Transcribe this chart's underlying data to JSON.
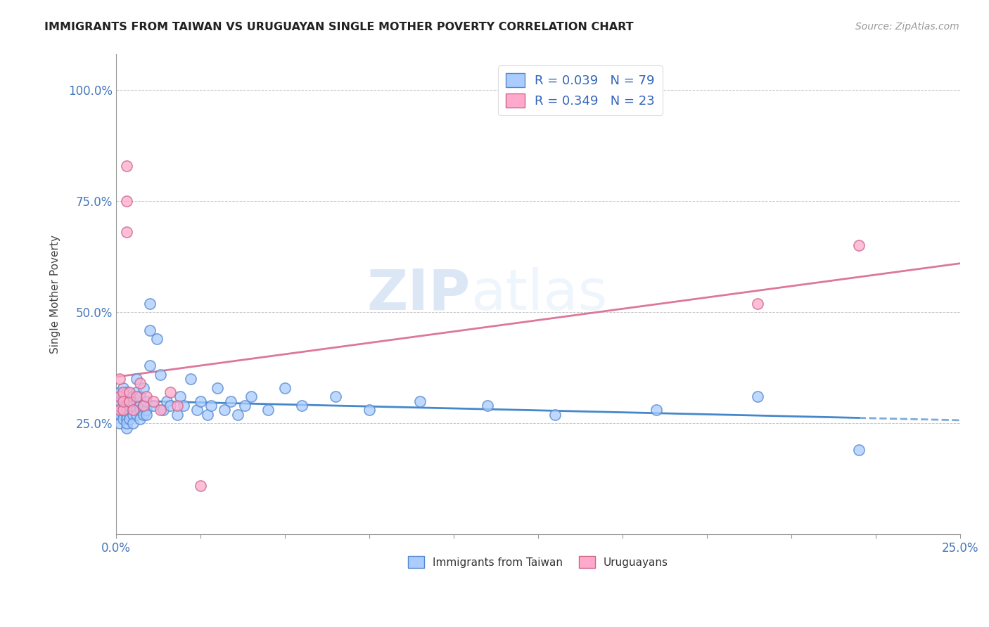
{
  "title": "IMMIGRANTS FROM TAIWAN VS URUGUAYAN SINGLE MOTHER POVERTY CORRELATION CHART",
  "source": "Source: ZipAtlas.com",
  "ylabel": "Single Mother Poverty",
  "xlim": [
    0.0,
    0.25
  ],
  "ylim": [
    0.0,
    1.08
  ],
  "y_ticks": [
    0.25,
    0.5,
    0.75,
    1.0
  ],
  "y_tick_labels": [
    "25.0%",
    "50.0%",
    "75.0%",
    "100.0%"
  ],
  "x_ticks": [
    0.0,
    0.25
  ],
  "x_tick_labels": [
    "0.0%",
    "25.0%"
  ],
  "r_taiwan": 0.039,
  "n_taiwan": 79,
  "r_uruguayan": 0.349,
  "n_uruguayan": 23,
  "color_taiwan": "#aaccff",
  "color_uruguayan": "#ffaacc",
  "edge_color_taiwan": "#5588cc",
  "edge_color_uruguayan": "#cc6688",
  "line_color_taiwan": "#4488cc",
  "line_color_uruguayan": "#dd7799",
  "watermark_zip": "ZIP",
  "watermark_atlas": "atlas",
  "legend_taiwan": "Immigrants from Taiwan",
  "legend_uruguayan": "Uruguayans",
  "taiwan_x": [
    0.001,
    0.001,
    0.001,
    0.001,
    0.001,
    0.002,
    0.002,
    0.002,
    0.002,
    0.002,
    0.002,
    0.002,
    0.003,
    0.003,
    0.003,
    0.003,
    0.003,
    0.003,
    0.003,
    0.003,
    0.004,
    0.004,
    0.004,
    0.004,
    0.004,
    0.005,
    0.005,
    0.005,
    0.005,
    0.005,
    0.006,
    0.006,
    0.006,
    0.006,
    0.006,
    0.007,
    0.007,
    0.007,
    0.007,
    0.008,
    0.008,
    0.008,
    0.009,
    0.009,
    0.009,
    0.01,
    0.01,
    0.01,
    0.011,
    0.012,
    0.013,
    0.014,
    0.015,
    0.016,
    0.018,
    0.019,
    0.02,
    0.022,
    0.024,
    0.025,
    0.027,
    0.028,
    0.03,
    0.032,
    0.034,
    0.036,
    0.038,
    0.04,
    0.045,
    0.05,
    0.055,
    0.065,
    0.075,
    0.09,
    0.11,
    0.13,
    0.16,
    0.19,
    0.22
  ],
  "taiwan_y": [
    0.28,
    0.3,
    0.32,
    0.27,
    0.25,
    0.29,
    0.31,
    0.27,
    0.33,
    0.28,
    0.26,
    0.3,
    0.29,
    0.27,
    0.31,
    0.26,
    0.28,
    0.24,
    0.32,
    0.25,
    0.28,
    0.3,
    0.27,
    0.29,
    0.26,
    0.28,
    0.3,
    0.27,
    0.31,
    0.25,
    0.35,
    0.28,
    0.27,
    0.3,
    0.32,
    0.29,
    0.26,
    0.28,
    0.31,
    0.27,
    0.33,
    0.29,
    0.28,
    0.3,
    0.27,
    0.46,
    0.52,
    0.38,
    0.29,
    0.44,
    0.36,
    0.28,
    0.3,
    0.29,
    0.27,
    0.31,
    0.29,
    0.35,
    0.28,
    0.3,
    0.27,
    0.29,
    0.33,
    0.28,
    0.3,
    0.27,
    0.29,
    0.31,
    0.28,
    0.33,
    0.29,
    0.31,
    0.28,
    0.3,
    0.29,
    0.27,
    0.28,
    0.31,
    0.19
  ],
  "uruguayan_x": [
    0.001,
    0.001,
    0.001,
    0.002,
    0.002,
    0.002,
    0.003,
    0.003,
    0.003,
    0.004,
    0.004,
    0.005,
    0.006,
    0.007,
    0.008,
    0.009,
    0.011,
    0.013,
    0.016,
    0.018,
    0.025,
    0.19,
    0.22
  ],
  "uruguayan_y": [
    0.35,
    0.31,
    0.28,
    0.32,
    0.28,
    0.3,
    0.68,
    0.75,
    0.83,
    0.3,
    0.32,
    0.28,
    0.31,
    0.34,
    0.29,
    0.31,
    0.3,
    0.28,
    0.32,
    0.29,
    0.11,
    0.52,
    0.65
  ]
}
